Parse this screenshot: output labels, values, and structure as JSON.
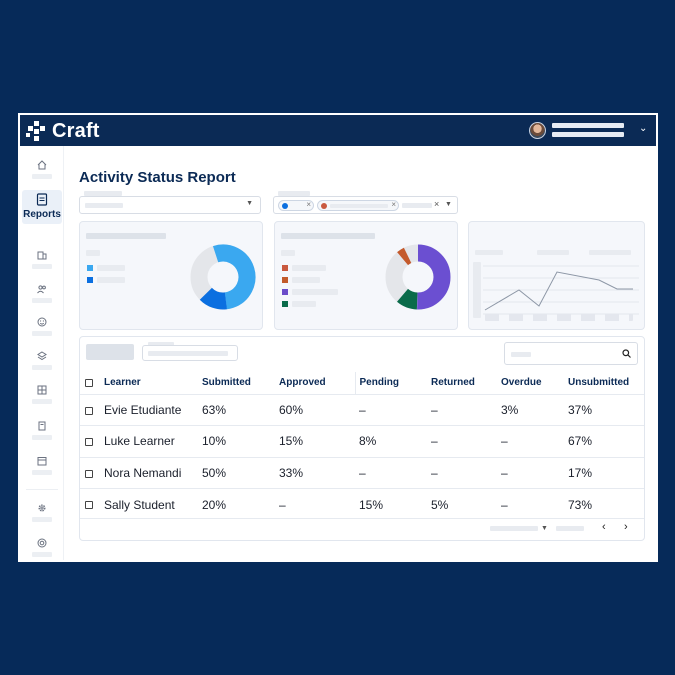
{
  "app": {
    "name": "Craft",
    "page_title": "Activity Status Report"
  },
  "sidebar": {
    "active_label": "Reports",
    "items": [
      {
        "icon": "home-icon"
      },
      {
        "icon": "reports-icon",
        "label": "Reports"
      },
      {
        "icon": "building-icon"
      },
      {
        "icon": "users-icon"
      },
      {
        "icon": "smiley-icon"
      },
      {
        "icon": "layers-icon"
      },
      {
        "icon": "grid-icon"
      },
      {
        "icon": "book-icon"
      },
      {
        "icon": "calendar-icon"
      },
      {
        "icon": "gear-icon"
      },
      {
        "icon": "support-icon"
      }
    ]
  },
  "charts": {
    "donut1": {
      "colors": [
        "#3aa8f0",
        "#0b6fe0",
        "#e4e6ea"
      ]
    },
    "donut2": {
      "colors": [
        "#6b4fd1",
        "#c45a2c",
        "#0a6b4a",
        "#e4e6ea"
      ]
    },
    "legend2_colors": [
      "#c9593f",
      "#c25a2a",
      "#6a4cc9",
      "#0a6b4b"
    ],
    "legend1_colors": [
      "#3aa8f0",
      "#0b6fe0"
    ]
  },
  "table": {
    "headers": [
      "Learner",
      "Submitted",
      "Approved",
      "Pending",
      "Returned",
      "Overdue",
      "Unsubmitted"
    ],
    "rows": [
      {
        "learner": "Evie Etudiante",
        "submitted": "63%",
        "approved": "60%",
        "pending": "–",
        "returned": "–",
        "overdue": "3%",
        "unsubmitted": "37%"
      },
      {
        "learner": "Luke Learner",
        "submitted": "10%",
        "approved": "15%",
        "pending": "8%",
        "returned": "–",
        "overdue": "–",
        "unsubmitted": "67%"
      },
      {
        "learner": "Nora Nemandi",
        "submitted": "50%",
        "approved": "33%",
        "pending": "–",
        "returned": "–",
        "overdue": "–",
        "unsubmitted": "17%"
      },
      {
        "learner": "Sally Student",
        "submitted": "20%",
        "approved": "–",
        "pending": "15%",
        "returned": "5%",
        "overdue": "–",
        "unsubmitted": "73%"
      }
    ]
  }
}
